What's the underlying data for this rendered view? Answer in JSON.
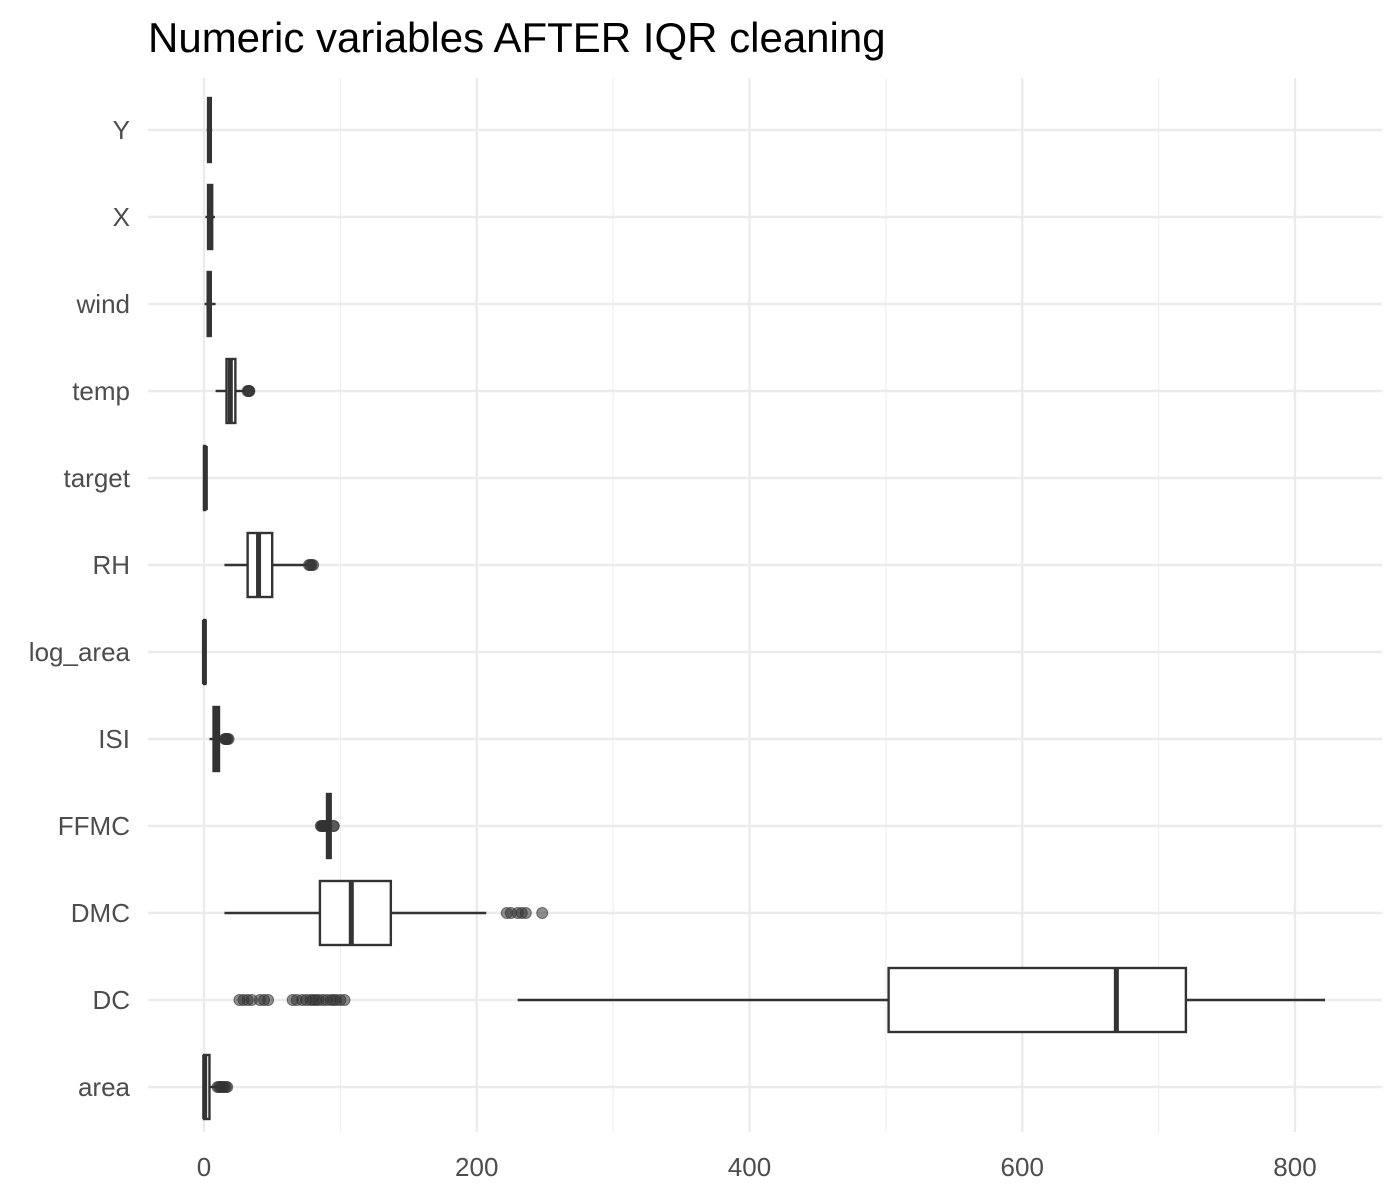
{
  "chart_data": {
    "type": "boxplot",
    "orientation": "horizontal",
    "title": "Numeric variables AFTER IQR cleaning",
    "xlabel": "",
    "ylabel": "",
    "xlim": [
      -40,
      865
    ],
    "xticks": [
      0,
      200,
      400,
      600,
      800
    ],
    "xtick_labels": [
      "0",
      "200",
      "400",
      "600",
      "800"
    ],
    "grid": true,
    "categories": [
      "Y",
      "X",
      "wind",
      "temp",
      "target",
      "RH",
      "log_area",
      "ISI",
      "FFMC",
      "DMC",
      "DC",
      "area"
    ],
    "boxes": [
      {
        "name": "Y",
        "whisker_low": 2,
        "q1": 3,
        "median": 4,
        "q3": 5,
        "whisker_high": 6,
        "outliers": []
      },
      {
        "name": "X",
        "whisker_low": 1,
        "q1": 3,
        "median": 4,
        "q3": 6,
        "whisker_high": 8,
        "outliers": []
      },
      {
        "name": "wind",
        "whisker_low": 0.4,
        "q1": 2.7,
        "median": 4,
        "q3": 4.9,
        "whisker_high": 8.5,
        "outliers": []
      },
      {
        "name": "temp",
        "whisker_low": 8.5,
        "q1": 16.5,
        "median": 19.3,
        "q3": 23,
        "whisker_high": 30,
        "outliers": [
          32,
          32.6,
          33.1,
          33.3
        ]
      },
      {
        "name": "target",
        "whisker_low": 0,
        "q1": 0,
        "median": 1,
        "q3": 1,
        "whisker_high": 1,
        "outliers": []
      },
      {
        "name": "RH",
        "whisker_low": 15,
        "q1": 32,
        "median": 40,
        "q3": 50,
        "whisker_high": 75,
        "outliers": [
          77,
          78,
          79,
          80
        ]
      },
      {
        "name": "log_area",
        "whisker_low": 0,
        "q1": 0,
        "median": 0.3,
        "q3": 1,
        "whisker_high": 2,
        "outliers": []
      },
      {
        "name": "ISI",
        "whisker_low": 4,
        "q1": 7,
        "median": 8.5,
        "q3": 11,
        "whisker_high": 15,
        "outliers": [
          15.3,
          15.8,
          16.1,
          16.5,
          17.2,
          18
        ]
      },
      {
        "name": "FFMC",
        "whisker_low": 89,
        "q1": 90.2,
        "median": 91.6,
        "q3": 92.9,
        "whisker_high": 94,
        "outliers": [
          85.7,
          86.2,
          86.8,
          87.3,
          87.8,
          88.2,
          88.6,
          94.8,
          95.2
        ]
      },
      {
        "name": "DMC",
        "whisker_low": 15,
        "q1": 85,
        "median": 108,
        "q3": 137,
        "whisker_high": 207,
        "outliers": [
          222,
          225,
          230,
          233,
          236,
          248
        ]
      },
      {
        "name": "DC",
        "whisker_low": 230,
        "q1": 502,
        "median": 669,
        "q3": 720,
        "whisker_high": 822,
        "outliers": [
          26,
          29,
          32,
          35,
          41,
          44,
          47,
          65,
          68,
          72,
          75,
          78,
          80,
          82,
          84,
          87,
          90,
          93,
          95,
          97,
          100,
          103
        ]
      },
      {
        "name": "area",
        "whisker_low": 0,
        "q1": 0,
        "median": 0.5,
        "q3": 4,
        "whisker_high": 9.5,
        "outliers": [
          10,
          11,
          12,
          13,
          14,
          15,
          16,
          17
        ]
      }
    ]
  }
}
